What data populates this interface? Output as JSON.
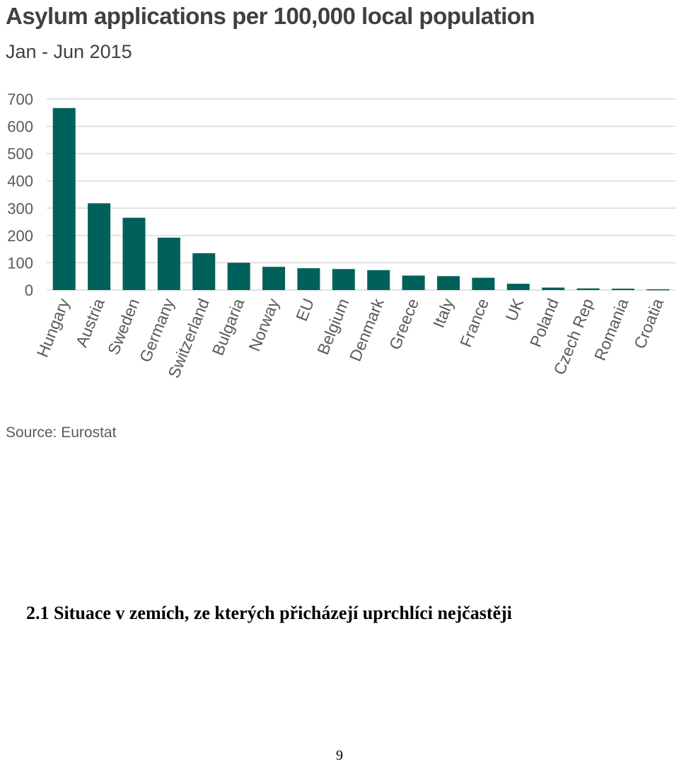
{
  "chart_data": {
    "type": "bar",
    "title": "Asylum applications per 100,000 local population",
    "subtitle": "Jan - Jun 2015",
    "categories": [
      "Hungary",
      "Austria",
      "Sweden",
      "Germany",
      "Switzerland",
      "Bulgaria",
      "Norway",
      "EU",
      "Belgium",
      "Denmark",
      "Greece",
      "Italy",
      "France",
      "UK",
      "Poland",
      "Czech Rep",
      "Romania",
      "Croatia"
    ],
    "values": [
      667,
      318,
      265,
      192,
      135,
      100,
      85,
      80,
      77,
      73,
      53,
      51,
      45,
      23,
      9,
      6,
      5,
      3
    ],
    "xlabel": "",
    "ylabel": "",
    "ylim": [
      0,
      700
    ],
    "yticks": [
      0,
      100,
      200,
      300,
      400,
      500,
      600,
      700
    ],
    "grid": true,
    "bar_color": "#00605a",
    "source": "Source: Eurostat"
  },
  "document": {
    "section_heading": "2.1 Situace v zemích, ze kterých přicházejí uprchlíci nejčastěji",
    "page_number": "9"
  }
}
